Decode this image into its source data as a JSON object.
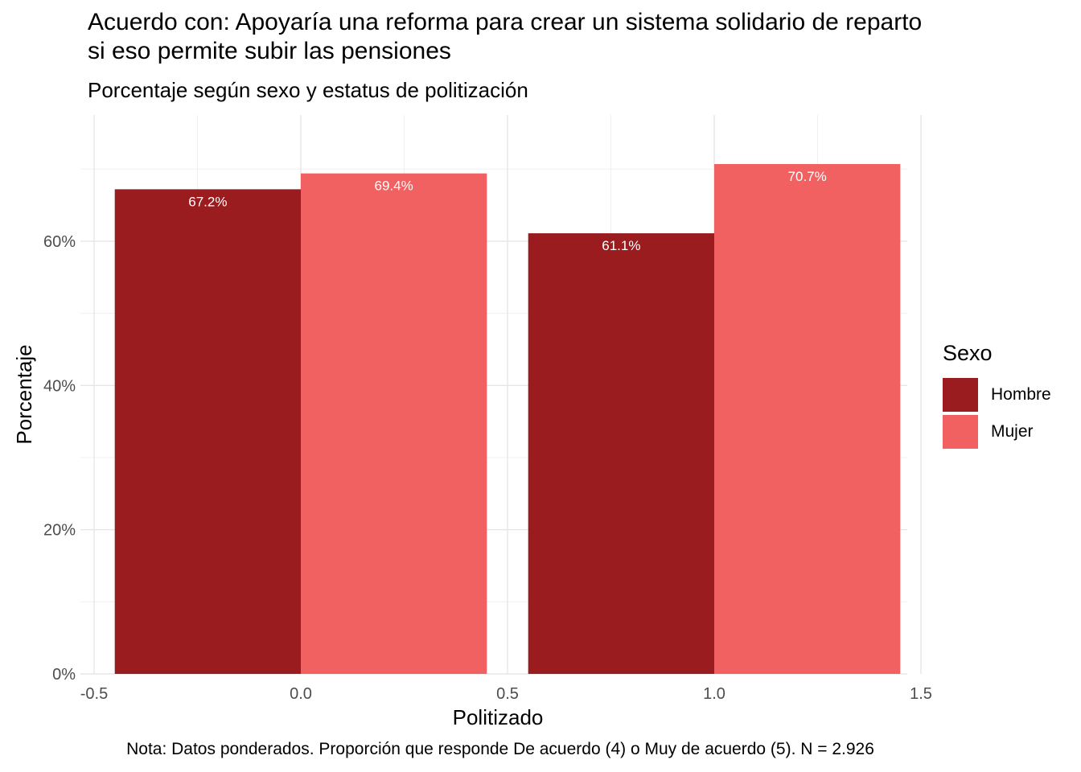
{
  "chart_data": {
    "type": "bar",
    "title_line1": "Acuerdo con: Apoyaría una reforma para crear un sistema solidario de reparto",
    "title_line2": "si eso permite subir las pensiones",
    "subtitle": "Porcentaje según sexo y estatus de politización",
    "xlabel": "Politizado",
    "ylabel": "Porcentaje",
    "caption": "Nota: Datos ponderados. Proporción que responde De acuerdo (4) o Muy de acuerdo (5). N = 2.926",
    "x_positions": [
      0,
      1
    ],
    "xlim": [
      -0.5,
      1.5
    ],
    "ylim": [
      0,
      77.5
    ],
    "x_ticks": [
      {
        "value": -0.5,
        "label": "-0.5"
      },
      {
        "value": 0.0,
        "label": "0.0"
      },
      {
        "value": 0.5,
        "label": "0.5"
      },
      {
        "value": 1.0,
        "label": "1.0"
      },
      {
        "value": 1.5,
        "label": "1.5"
      }
    ],
    "y_ticks": [
      {
        "value": 0,
        "label": "0%"
      },
      {
        "value": 20,
        "label": "20%"
      },
      {
        "value": 40,
        "label": "40%"
      },
      {
        "value": 60,
        "label": "60%"
      }
    ],
    "legend_title": "Sexo",
    "series": [
      {
        "name": "Hombre",
        "color": "#9B1C1F",
        "values": [
          67.2,
          61.1
        ],
        "labels": [
          "67.2%",
          "61.1%"
        ]
      },
      {
        "name": "Mujer",
        "color": "#F26161",
        "values": [
          69.4,
          70.7
        ],
        "labels": [
          "69.4%",
          "70.7%"
        ]
      }
    ],
    "grid": true
  }
}
